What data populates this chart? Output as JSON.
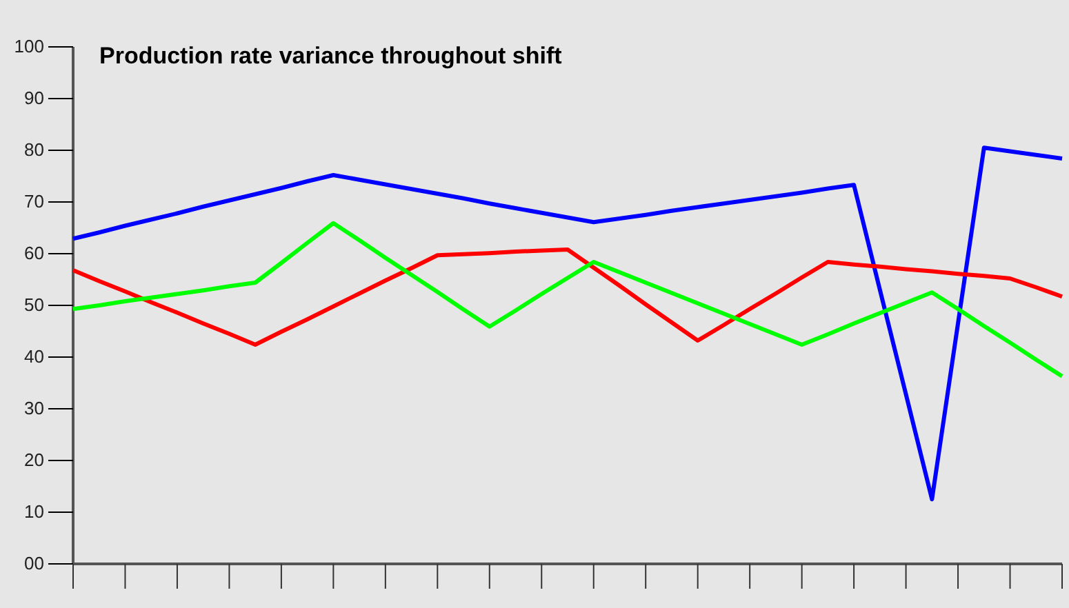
{
  "chart_data": {
    "type": "line",
    "title": "Production rate variance throughout shift",
    "categories": [
      null,
      null,
      null,
      null,
      null,
      null,
      null,
      null,
      null,
      null,
      null,
      null,
      null,
      null,
      null,
      null,
      null,
      null,
      null,
      null,
      null,
      null,
      null,
      null,
      null,
      null,
      null,
      null,
      null,
      null,
      null,
      null,
      null,
      null,
      null,
      null,
      null,
      null,
      null
    ],
    "ylim": [
      0,
      100
    ],
    "yticks": [
      {
        "value": 0,
        "label": "00"
      },
      10,
      20,
      30,
      40,
      50,
      60,
      70,
      80,
      90,
      100
    ],
    "grid": false,
    "marker": "none",
    "line_style": "solid",
    "series": [
      {
        "color": "#0000ff",
        "values": [
          62.9,
          64.1,
          65.4,
          66.6,
          67.8,
          69.1,
          70.3,
          71.5,
          72.7,
          74.0,
          75.2,
          74.3,
          73.4,
          72.5,
          71.6,
          70.7,
          69.7,
          68.8,
          67.9,
          67.0,
          66.1,
          66.8,
          67.5,
          68.3,
          69.0,
          69.7,
          70.4,
          71.1,
          71.8,
          72.6,
          73.3,
          53.0,
          32.8,
          12.5,
          46.5,
          80.5,
          79.8,
          79.1,
          78.4
        ]
      },
      {
        "color": "#ff0000",
        "values": [
          56.8,
          54.7,
          52.7,
          50.6,
          48.6,
          46.5,
          44.5,
          42.4,
          44.9,
          47.3,
          49.8,
          52.3,
          54.8,
          57.2,
          59.7,
          59.9,
          60.1,
          60.4,
          60.6,
          60.8,
          57.3,
          53.8,
          50.2,
          46.7,
          43.2,
          46.2,
          49.3,
          52.3,
          55.4,
          58.4,
          57.9,
          57.5,
          57.0,
          56.6,
          56.1,
          55.7,
          55.2,
          53.5,
          51.7
        ]
      },
      {
        "color": "#00ff00",
        "values": [
          49.3,
          50.0,
          50.8,
          51.5,
          52.2,
          52.9,
          53.7,
          54.4,
          58.2,
          62.1,
          65.9,
          62.6,
          59.2,
          55.9,
          52.6,
          49.2,
          45.9,
          49.0,
          52.2,
          55.3,
          58.4,
          56.4,
          54.4,
          52.4,
          50.4,
          48.4,
          46.4,
          44.4,
          42.4,
          44.4,
          46.5,
          48.5,
          50.5,
          52.5,
          49.3,
          46.0,
          42.8,
          39.5,
          36.3
        ]
      }
    ]
  }
}
